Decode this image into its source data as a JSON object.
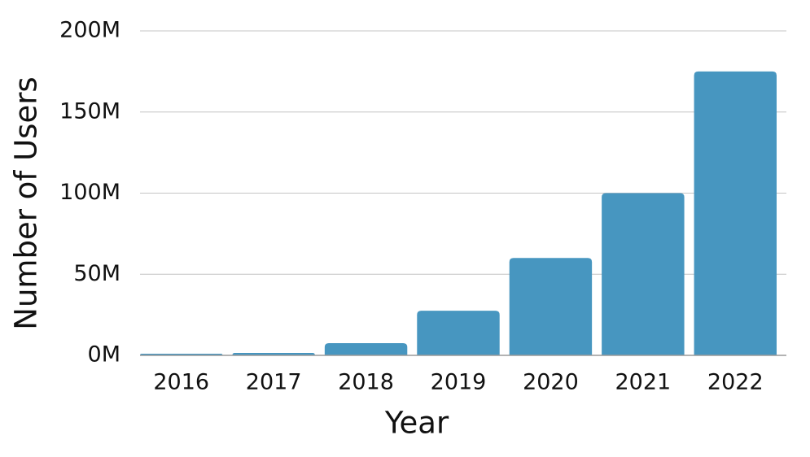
{
  "chart_data": {
    "type": "bar",
    "x_label": "Year",
    "y_label": "Number of Users",
    "categories": [
      "2016",
      "2017",
      "2018",
      "2019",
      "2020",
      "2021",
      "2022"
    ],
    "values": [
      1000000,
      1500000,
      7500000,
      27500000,
      60000000,
      100000000,
      175000000
    ],
    "color": "#4796c0",
    "ylim": [
      0,
      200000000
    ],
    "yticks": [
      {
        "value": 0,
        "label": "0M"
      },
      {
        "value": 50000000,
        "label": "50M"
      },
      {
        "value": 100000000,
        "label": "100M"
      },
      {
        "value": 150000000,
        "label": "150M"
      },
      {
        "value": 200000000,
        "label": "200M"
      }
    ],
    "grid": true
  }
}
